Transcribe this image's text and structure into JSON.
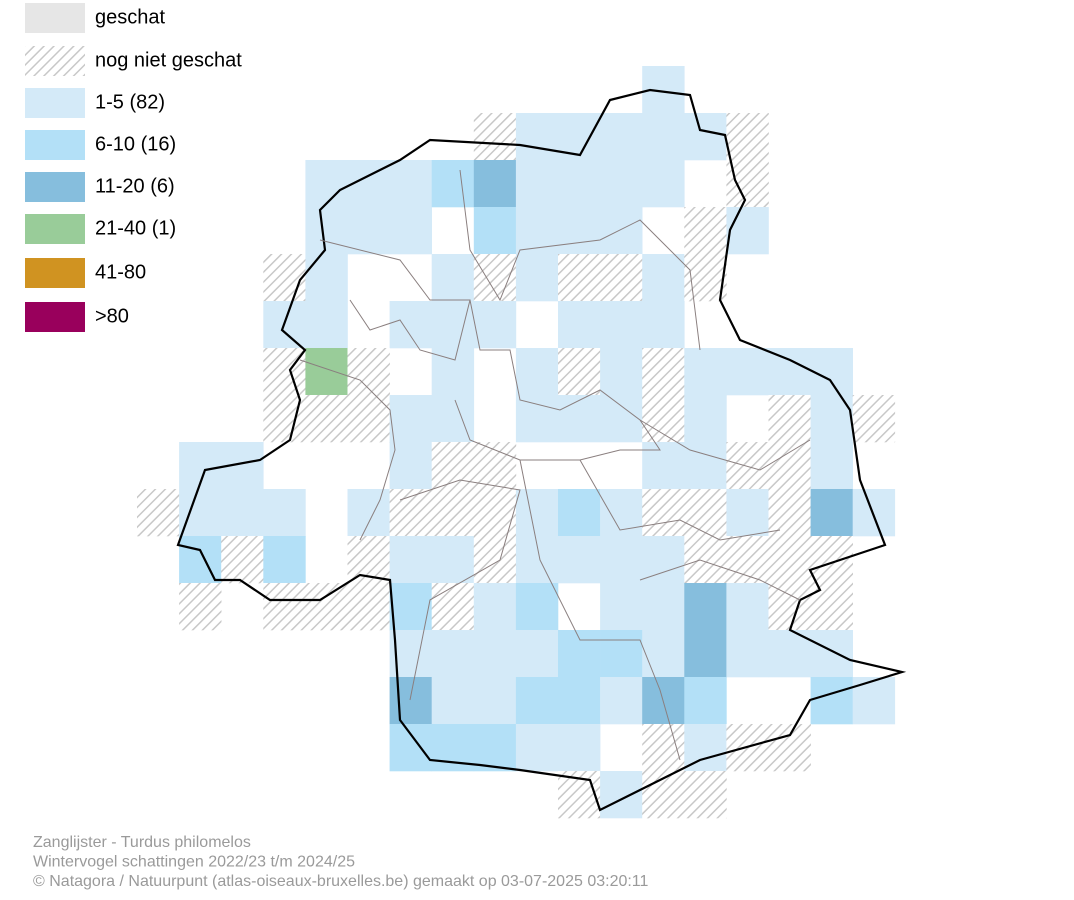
{
  "legend": {
    "items": [
      {
        "label": "geschat",
        "color": "#e6e6e6"
      },
      {
        "label": "nog niet geschat",
        "color": "#c8c8c8",
        "pattern": "hatch"
      },
      {
        "label": "1-5 (82)",
        "color": "#d4eaf8"
      },
      {
        "label": "6-10 (16)",
        "color": "#b3e0f7"
      },
      {
        "label": "11-20 (6)",
        "color": "#86bedd"
      },
      {
        "label": "21-40 (1)",
        "color": "#99cc99"
      },
      {
        "label": "41-80",
        "color": "#d09321"
      },
      {
        "label": ">80",
        "color": "#99005c"
      }
    ]
  },
  "footer": {
    "lines": [
      "Zanglijster - Turdus philomelos",
      "Wintervogel schattingen 2022/23 t/m 2024/25",
      "© Natagora / Natuurpunt (atlas-oiseaux-bruxelles.be) gemaakt op 03-07-2025 03:20:11"
    ]
  }
}
